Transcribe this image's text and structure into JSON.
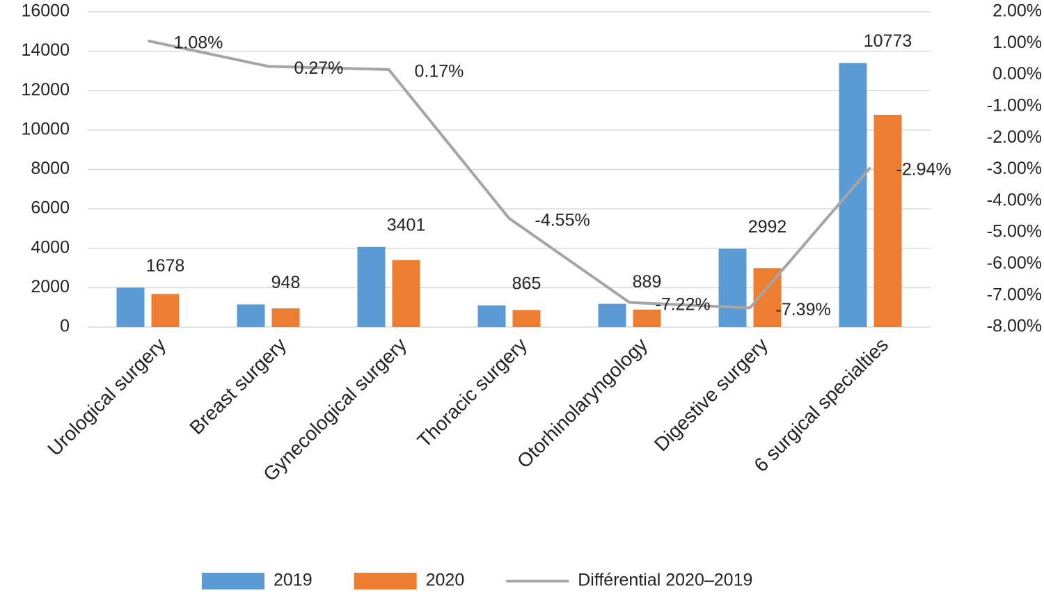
{
  "chart_data": {
    "type": "bar-line",
    "categories": [
      "Urological surgery",
      "Breast surgery",
      "Gynecological surgery",
      "Thoracic surgery",
      "Otorhinolaryngology",
      "Digestive surgery",
      "6 surgical specialties"
    ],
    "series": [
      {
        "name": "2019",
        "color": "#5b9bd5",
        "type": "bar",
        "values": [
          2000,
          1150,
          4070,
          1100,
          1180,
          3970,
          13400
        ]
      },
      {
        "name": "2020",
        "color": "#ed7d31",
        "type": "bar",
        "values": [
          1678,
          948,
          3401,
          865,
          889,
          2992,
          10773
        ]
      },
      {
        "name": "Différential 2020–2019",
        "color": "#a5a5a5",
        "type": "line",
        "axis": "y2",
        "values": [
          1.08,
          0.27,
          0.17,
          -4.55,
          -7.22,
          -7.39,
          -2.94
        ],
        "value_labels": [
          "1.08%",
          "0.27%",
          "0.17%",
          "-4.55%",
          "-7.22%",
          "-7.39%",
          "-2.94%"
        ]
      }
    ],
    "ylim": [
      0,
      16000
    ],
    "yticks": [
      0,
      2000,
      4000,
      6000,
      8000,
      10000,
      12000,
      14000,
      16000
    ],
    "y2lim": [
      -8,
      2
    ],
    "y2ticks": [
      {
        "value": -8,
        "label": "-8.00%"
      },
      {
        "value": -7,
        "label": "-7.00%"
      },
      {
        "value": -6,
        "label": "-6.00%"
      },
      {
        "value": -5,
        "label": "-5.00%"
      },
      {
        "value": -4,
        "label": "-4.00%"
      },
      {
        "value": -3,
        "label": "-3.00%"
      },
      {
        "value": -2,
        "label": "-2.00%"
      },
      {
        "value": -1,
        "label": "-1.00%"
      },
      {
        "value": 0,
        "label": "0.00%"
      },
      {
        "value": 1,
        "label": "1.00%"
      },
      {
        "value": 2,
        "label": "2.00%"
      }
    ],
    "grid": true,
    "legend": "bottom"
  }
}
